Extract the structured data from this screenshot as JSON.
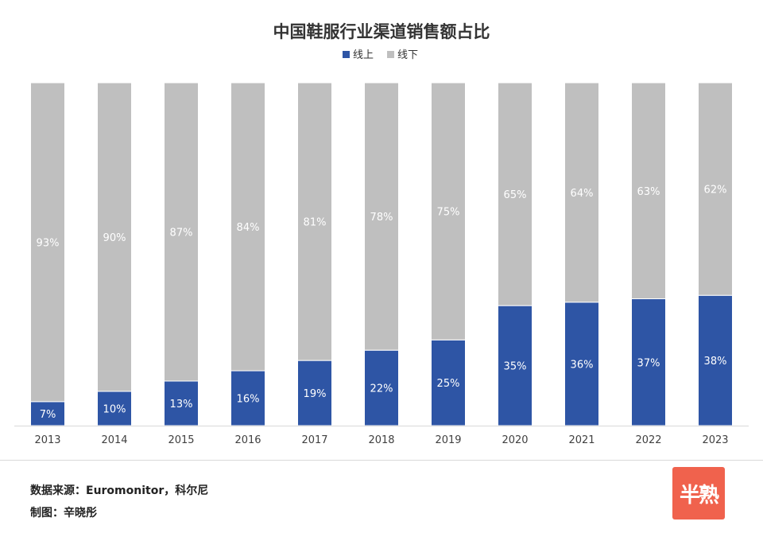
{
  "chart_data": {
    "type": "bar",
    "stacked": true,
    "title": "中国鞋服行业渠道销售额占比",
    "categories": [
      "2013",
      "2014",
      "2015",
      "2016",
      "2017",
      "2018",
      "2019",
      "2020",
      "2021",
      "2022",
      "2023"
    ],
    "series": [
      {
        "name": "线上",
        "color": "#2e55a5",
        "values": [
          7,
          10,
          13,
          16,
          19,
          22,
          25,
          35,
          36,
          37,
          38
        ],
        "labels": [
          "7%",
          "10%",
          "13%",
          "16%",
          "19%",
          "22%",
          "25%",
          "35%",
          "36%",
          "37%",
          "38%"
        ]
      },
      {
        "name": "线下",
        "color": "#bfbfbf",
        "values": [
          93,
          90,
          87,
          84,
          81,
          78,
          75,
          65,
          64,
          63,
          62
        ],
        "labels": [
          "93%",
          "90%",
          "87%",
          "84%",
          "81%",
          "78%",
          "75%",
          "65%",
          "64%",
          "63%",
          "62%"
        ]
      }
    ],
    "ylim": [
      0,
      100
    ],
    "legend": "top-center",
    "grid": false
  },
  "footer": {
    "source": "数据来源：Euromonitor，科尔尼",
    "credit": "制图：辛晓彤"
  },
  "logo": {
    "text": "半熟"
  }
}
